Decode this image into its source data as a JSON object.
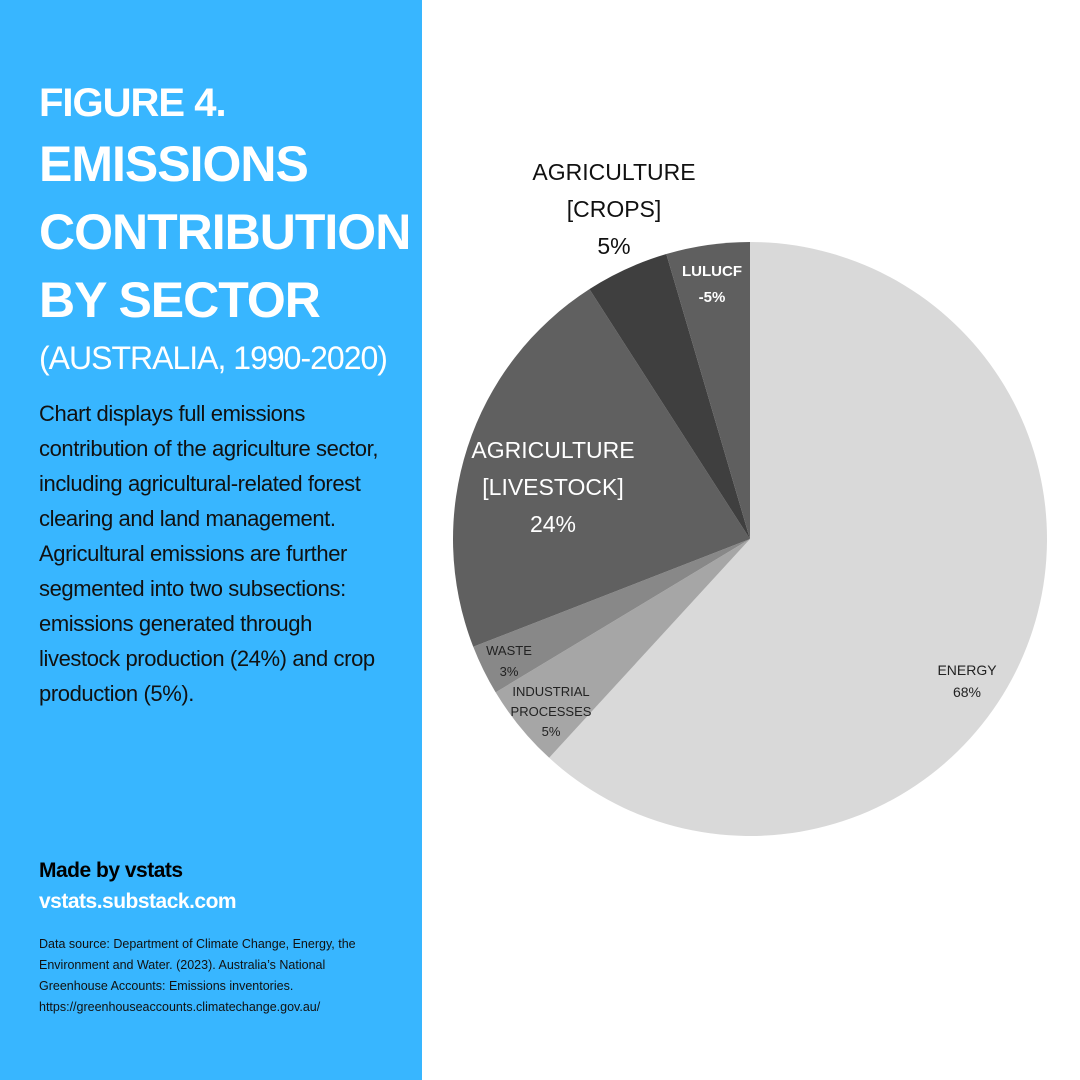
{
  "sidebar": {
    "figure_label": "FIGURE 4.",
    "title": "EMISSIONS CONTRIBUTION BY SECTOR",
    "subtitle": "(AUSTRALIA, 1990-2020)",
    "description": "Chart displays full emissions contribution of the agriculture sector, including agricultural-related forest clearing and land management.  Agricultural emissions are further segmented into two subsections: emissions generated through livestock production (24%) and crop production (5%).",
    "credit": "Made by vstats",
    "credit_link": "vstats.substack.com",
    "source": "Data source: Department of Climate Change, Energy, the Environment and Water. (2023). Australia’s National Greenhouse Accounts: Emissions inventories. https://greenhouseaccounts.climatechange.gov.au/"
  },
  "colors": {
    "panel": "#38b6ff",
    "panel_text": "#ffffff",
    "body_text": "#111111"
  },
  "chart_data": {
    "type": "pie",
    "title": "",
    "slices": [
      {
        "id": "energy",
        "label_lines": [
          "ENERGY",
          "68%"
        ],
        "value": 68,
        "color": "#d9d9d9",
        "label_color": "#222222",
        "label_size": 14
      },
      {
        "id": "industrial",
        "label_lines": [
          "INDUSTRIAL",
          "PROCESSES",
          "5%"
        ],
        "value": 5,
        "color": "#a6a6a6",
        "label_color": "#222222",
        "label_size": 13
      },
      {
        "id": "waste",
        "label_lines": [
          "WASTE",
          "3%"
        ],
        "value": 3,
        "color": "#888888",
        "label_color": "#222222",
        "label_size": 13
      },
      {
        "id": "livestock",
        "label_lines": [
          "AGRICULTURE",
          "[LIVESTOCK]",
          "24%"
        ],
        "value": 24,
        "color": "#606060",
        "label_color": "#ffffff",
        "label_size": 23
      },
      {
        "id": "crops",
        "label_lines": [
          "AGRICULTURE",
          "[CROPS]",
          "5%"
        ],
        "value": 5,
        "color": "#3f3f3f",
        "label_color": "#111111",
        "label_size": 23
      },
      {
        "id": "lulucf",
        "label_lines": [
          "LULUCF",
          "-5%"
        ],
        "value": -5,
        "color": "#5f5f5f",
        "label_color": "#ffffff",
        "label_size": 15
      }
    ]
  }
}
